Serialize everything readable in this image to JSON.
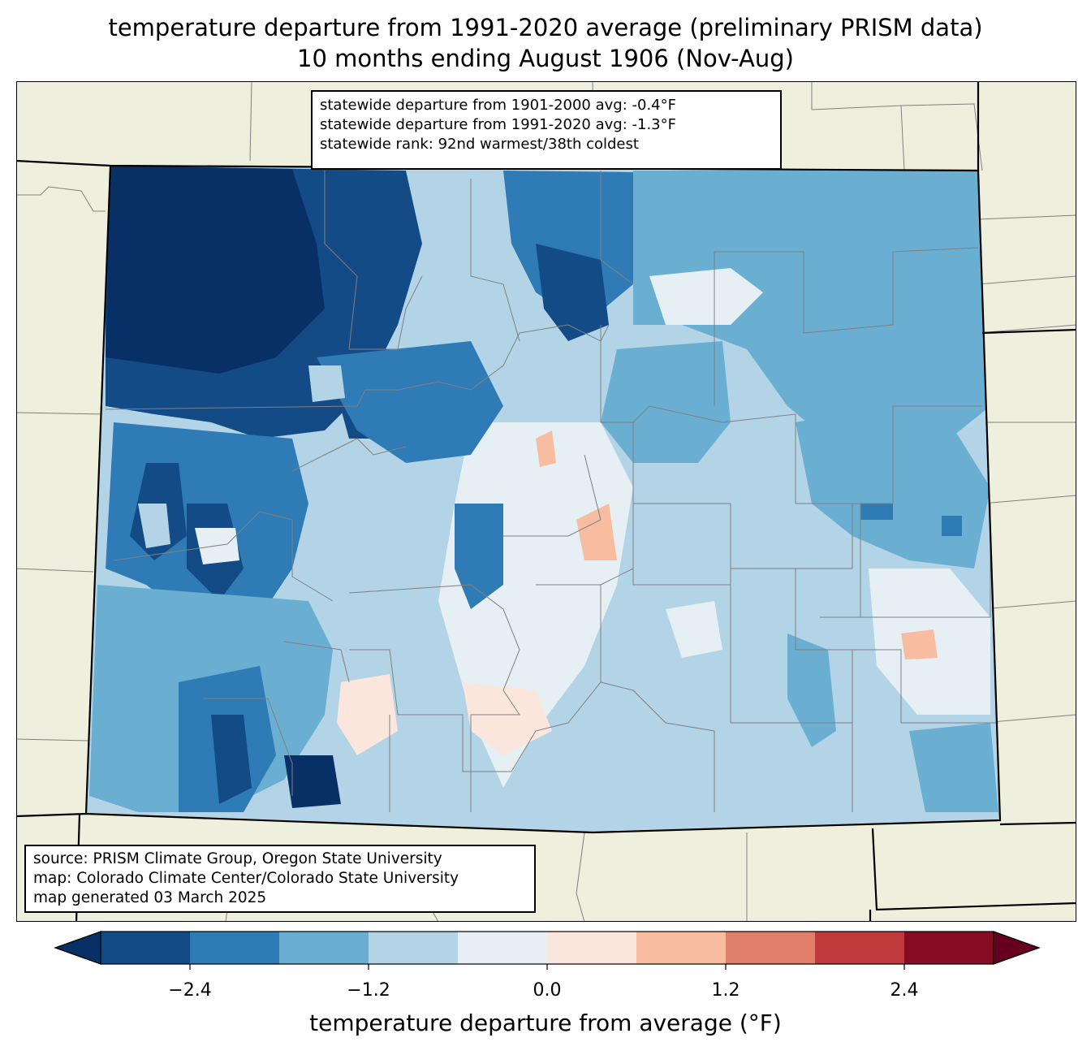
{
  "title": {
    "line1": "temperature departure from 1991-2020 average (preliminary PRISM data)",
    "line2": "10 months ending August 1906 (Nov-Aug)"
  },
  "stats": {
    "line1": "statewide departure from 1901-2000 avg: -0.4°F",
    "line2": "statewide departure from 1991-2020 avg: -1.3°F",
    "line3": "statewide rank: 92nd warmest/38th coldest"
  },
  "source": {
    "line1": "source: PRISM Climate Group, Oregon State University",
    "line2": "map: Colorado Climate Center/Colorado State University",
    "line3": "map generated 03 March 2025"
  },
  "colorbar": {
    "label": "temperature departure from average (°F)",
    "ticks": [
      "−2.4",
      "−1.2",
      "0.0",
      "1.2",
      "2.4"
    ],
    "colors": [
      "#083067",
      "#134b87",
      "#2f7bb6",
      "#6aaed2",
      "#b3d4e7",
      "#e6eff4",
      "#fae6dd",
      "#f8bca0",
      "#e0806a",
      "#bf3a3a",
      "#870b22",
      "#67001f"
    ]
  },
  "map_colors": {
    "land": "#efefdd",
    "state_border": "#000000",
    "county_border": "#808080"
  }
}
